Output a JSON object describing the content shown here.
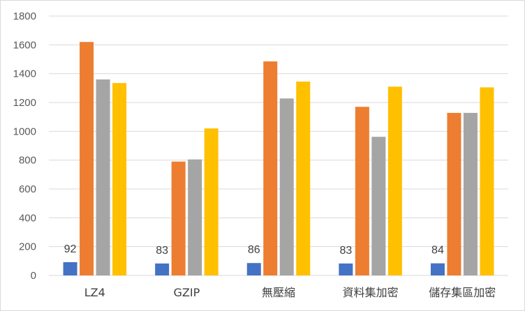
{
  "chart_data": {
    "type": "bar",
    "categories": [
      "LZ4",
      "GZIP",
      "無壓縮",
      "資料集加密",
      "儲存集區加密"
    ],
    "series": [
      {
        "color": "#4472c4",
        "values": [
          92,
          83,
          86,
          83,
          84
        ],
        "data_labels": [
          "92",
          "83",
          "86",
          "83",
          "84"
        ]
      },
      {
        "color": "#ed7d31",
        "values": [
          1620,
          790,
          1485,
          1170,
          1128
        ]
      },
      {
        "color": "#a5a5a5",
        "values": [
          1360,
          805,
          1228,
          962,
          1128
        ]
      },
      {
        "color": "#ffc000",
        "values": [
          1335,
          1020,
          1345,
          1310,
          1305
        ]
      }
    ],
    "yticks": [
      "0",
      "200",
      "400",
      "600",
      "800",
      "1000",
      "1200",
      "1400",
      "1600",
      "1800"
    ],
    "ylim": [
      0,
      1800
    ],
    "grid": true,
    "legend": "none",
    "gridline_color": "#d9d9d9"
  }
}
